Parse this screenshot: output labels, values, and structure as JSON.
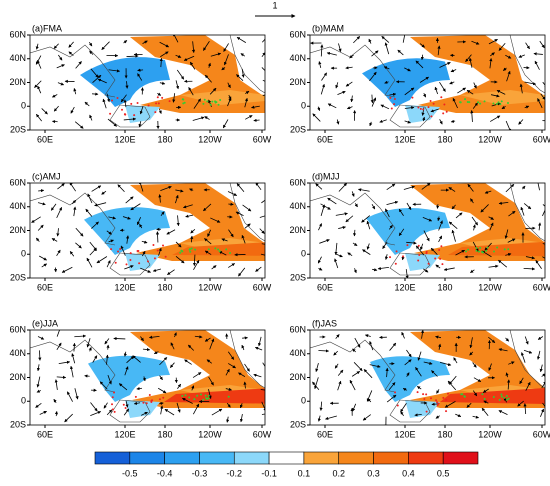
{
  "reference_arrow": "1",
  "panels": [
    {
      "label": "(a)FMA"
    },
    {
      "label": "(b)MAM"
    },
    {
      "label": "(c)AMJ"
    },
    {
      "label": "(d)MJJ"
    },
    {
      "label": "(e)JJA"
    },
    {
      "label": "(f)JAS"
    }
  ],
  "lat_ticks": [
    "60N",
    "40N",
    "20N",
    "0",
    "20S"
  ],
  "lon_ticks": [
    "60E",
    "120E",
    "180",
    "120W",
    "60W"
  ],
  "colorbar": {
    "labels": [
      -0.5,
      -0.4,
      -0.3,
      -0.2,
      -0.1,
      0.1,
      0.2,
      0.3,
      0.4,
      0.5
    ],
    "colors": [
      "#1560d8",
      "#1c85e8",
      "#2da0f0",
      "#48b8f5",
      "#8cd8fa",
      "#ffffff",
      "#f9a43a",
      "#f5861b",
      "#f26a10",
      "#ee3a12",
      "#e0101a"
    ]
  }
}
